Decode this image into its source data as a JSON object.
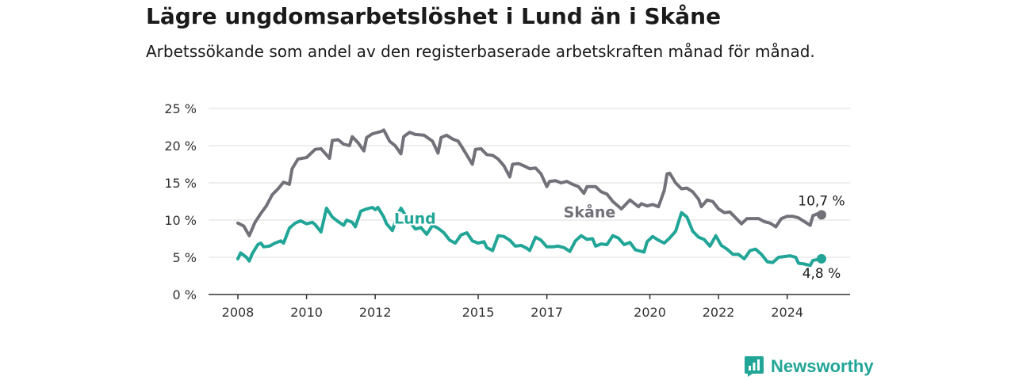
{
  "header": {
    "title": "Lägre ungdomsarbetslöshet i Lund än i Skåne",
    "subtitle": "Arbetssökande som andel av den registerbaserade arbetskraften månad för månad."
  },
  "brand": {
    "name": "Newsworthy",
    "icon": "newsworthy-logo-icon",
    "color": "#21a597"
  },
  "chart_data": {
    "type": "line",
    "title": "Lägre ungdomsarbetslöshet i Lund än i Skåne",
    "subtitle": "Arbetssökande som andel av den registerbaserade arbetskraften månad för månad.",
    "xlabel": "",
    "ylabel": "",
    "xlim": [
      2008,
      2025
    ],
    "ylim": [
      0,
      25
    ],
    "x_ticks": [
      2008,
      2010,
      2012,
      2015,
      2017,
      2020,
      2022,
      2024
    ],
    "x_tick_labels": [
      "2008",
      "2010",
      "2012",
      "2015",
      "2017",
      "2020",
      "2022",
      "2024"
    ],
    "y_ticks": [
      0,
      5,
      10,
      15,
      20,
      25
    ],
    "y_tick_labels": [
      "0 %",
      "5 %",
      "10 %",
      "15 %",
      "20 %",
      "25 %"
    ],
    "grid": true,
    "legend": "inline labels",
    "series": [
      {
        "name": "Skåne",
        "color": "#727179",
        "end_label": "10,7 %",
        "points": [
          [
            2008.0,
            9.6
          ],
          [
            2008.17,
            9.2
          ],
          [
            2008.33,
            7.9
          ],
          [
            2008.5,
            9.7
          ],
          [
            2008.67,
            10.9
          ],
          [
            2008.83,
            11.9
          ],
          [
            2009.0,
            13.4
          ],
          [
            2009.17,
            14.2
          ],
          [
            2009.33,
            15.1
          ],
          [
            2009.5,
            14.8
          ],
          [
            2009.58,
            16.9
          ],
          [
            2009.75,
            18.2
          ],
          [
            2010.0,
            18.4
          ],
          [
            2010.25,
            19.5
          ],
          [
            2010.42,
            19.6
          ],
          [
            2010.67,
            18.3
          ],
          [
            2010.75,
            20.7
          ],
          [
            2010.92,
            20.8
          ],
          [
            2011.08,
            20.2
          ],
          [
            2011.25,
            20.0
          ],
          [
            2011.33,
            21.2
          ],
          [
            2011.5,
            20.4
          ],
          [
            2011.67,
            19.3
          ],
          [
            2011.75,
            21.1
          ],
          [
            2011.92,
            21.6
          ],
          [
            2012.17,
            21.9
          ],
          [
            2012.25,
            22.1
          ],
          [
            2012.42,
            20.6
          ],
          [
            2012.58,
            20.0
          ],
          [
            2012.75,
            18.9
          ],
          [
            2012.83,
            21.2
          ],
          [
            2013.0,
            21.8
          ],
          [
            2013.17,
            21.5
          ],
          [
            2013.42,
            21.4
          ],
          [
            2013.67,
            20.6
          ],
          [
            2013.83,
            19.0
          ],
          [
            2013.92,
            21.1
          ],
          [
            2014.08,
            21.4
          ],
          [
            2014.25,
            20.9
          ],
          [
            2014.42,
            20.6
          ],
          [
            2014.58,
            19.4
          ],
          [
            2014.83,
            17.5
          ],
          [
            2014.92,
            19.5
          ],
          [
            2015.08,
            19.6
          ],
          [
            2015.25,
            18.8
          ],
          [
            2015.42,
            18.7
          ],
          [
            2015.58,
            18.2
          ],
          [
            2015.75,
            17.3
          ],
          [
            2015.92,
            15.8
          ],
          [
            2016.0,
            17.5
          ],
          [
            2016.17,
            17.6
          ],
          [
            2016.33,
            17.3
          ],
          [
            2016.5,
            16.9
          ],
          [
            2016.67,
            17.0
          ],
          [
            2016.83,
            16.2
          ],
          [
            2017.0,
            14.5
          ],
          [
            2017.08,
            15.2
          ],
          [
            2017.25,
            15.3
          ],
          [
            2017.42,
            15.0
          ],
          [
            2017.58,
            15.2
          ],
          [
            2017.75,
            14.8
          ],
          [
            2017.92,
            14.5
          ],
          [
            2018.08,
            13.6
          ],
          [
            2018.17,
            14.5
          ],
          [
            2018.42,
            14.5
          ],
          [
            2018.58,
            13.8
          ],
          [
            2018.75,
            13.5
          ],
          [
            2018.92,
            12.5
          ],
          [
            2019.17,
            11.5
          ],
          [
            2019.42,
            12.7
          ],
          [
            2019.67,
            11.8
          ],
          [
            2019.75,
            12.2
          ],
          [
            2019.92,
            11.9
          ],
          [
            2020.08,
            12.1
          ],
          [
            2020.25,
            11.8
          ],
          [
            2020.42,
            14.0
          ],
          [
            2020.5,
            16.2
          ],
          [
            2020.58,
            16.3
          ],
          [
            2020.75,
            15.0
          ],
          [
            2020.92,
            14.2
          ],
          [
            2021.08,
            14.3
          ],
          [
            2021.25,
            13.8
          ],
          [
            2021.42,
            12.8
          ],
          [
            2021.5,
            11.8
          ],
          [
            2021.67,
            12.7
          ],
          [
            2021.83,
            12.5
          ],
          [
            2022.0,
            11.5
          ],
          [
            2022.17,
            11.0
          ],
          [
            2022.33,
            11.1
          ],
          [
            2022.5,
            10.3
          ],
          [
            2022.67,
            9.5
          ],
          [
            2022.83,
            10.2
          ],
          [
            2023.0,
            10.2
          ],
          [
            2023.17,
            10.2
          ],
          [
            2023.33,
            9.8
          ],
          [
            2023.5,
            9.6
          ],
          [
            2023.67,
            9.1
          ],
          [
            2023.83,
            10.2
          ],
          [
            2024.0,
            10.5
          ],
          [
            2024.17,
            10.5
          ],
          [
            2024.33,
            10.3
          ],
          [
            2024.5,
            9.8
          ],
          [
            2024.67,
            9.3
          ],
          [
            2024.75,
            10.6
          ],
          [
            2024.92,
            10.9
          ],
          [
            2025.0,
            10.7
          ]
        ]
      },
      {
        "name": "Lund",
        "color": "#21a597",
        "end_label": "4,8 %",
        "points": [
          [
            2008.0,
            4.8
          ],
          [
            2008.08,
            5.6
          ],
          [
            2008.25,
            5.0
          ],
          [
            2008.33,
            4.5
          ],
          [
            2008.42,
            5.5
          ],
          [
            2008.58,
            6.7
          ],
          [
            2008.67,
            6.9
          ],
          [
            2008.75,
            6.4
          ],
          [
            2008.92,
            6.5
          ],
          [
            2009.08,
            6.9
          ],
          [
            2009.25,
            7.2
          ],
          [
            2009.33,
            6.9
          ],
          [
            2009.5,
            8.9
          ],
          [
            2009.67,
            9.6
          ],
          [
            2009.83,
            9.9
          ],
          [
            2010.0,
            9.5
          ],
          [
            2010.17,
            9.7
          ],
          [
            2010.25,
            9.4
          ],
          [
            2010.42,
            8.4
          ],
          [
            2010.58,
            11.6
          ],
          [
            2010.75,
            10.4
          ],
          [
            2010.92,
            9.8
          ],
          [
            2011.08,
            9.3
          ],
          [
            2011.17,
            10.0
          ],
          [
            2011.33,
            9.7
          ],
          [
            2011.42,
            9.1
          ],
          [
            2011.58,
            11.2
          ],
          [
            2011.75,
            11.5
          ],
          [
            2011.92,
            11.7
          ],
          [
            2012.0,
            11.4
          ],
          [
            2012.08,
            11.7
          ],
          [
            2012.25,
            10.4
          ],
          [
            2012.33,
            9.5
          ],
          [
            2012.5,
            8.6
          ],
          [
            2012.67,
            10.9
          ],
          [
            2012.75,
            11.6
          ],
          [
            2013.0,
            9.8
          ],
          [
            2013.17,
            8.8
          ],
          [
            2013.33,
            9.0
          ],
          [
            2013.5,
            8.1
          ],
          [
            2013.67,
            9.3
          ],
          [
            2013.83,
            8.9
          ],
          [
            2014.0,
            8.3
          ],
          [
            2014.17,
            7.3
          ],
          [
            2014.33,
            6.9
          ],
          [
            2014.5,
            8.0
          ],
          [
            2014.67,
            8.3
          ],
          [
            2014.83,
            7.2
          ],
          [
            2015.0,
            6.9
          ],
          [
            2015.17,
            7.1
          ],
          [
            2015.25,
            6.3
          ],
          [
            2015.42,
            5.9
          ],
          [
            2015.58,
            7.9
          ],
          [
            2015.75,
            7.8
          ],
          [
            2015.92,
            7.3
          ],
          [
            2016.08,
            6.5
          ],
          [
            2016.25,
            6.6
          ],
          [
            2016.42,
            6.2
          ],
          [
            2016.5,
            5.9
          ],
          [
            2016.67,
            7.7
          ],
          [
            2016.83,
            7.3
          ],
          [
            2017.0,
            6.4
          ],
          [
            2017.17,
            6.4
          ],
          [
            2017.33,
            6.5
          ],
          [
            2017.5,
            6.3
          ],
          [
            2017.67,
            5.8
          ],
          [
            2017.83,
            7.2
          ],
          [
            2018.0,
            7.9
          ],
          [
            2018.17,
            7.4
          ],
          [
            2018.33,
            7.5
          ],
          [
            2018.42,
            6.5
          ],
          [
            2018.58,
            6.8
          ],
          [
            2018.75,
            6.7
          ],
          [
            2018.92,
            7.9
          ],
          [
            2019.08,
            7.6
          ],
          [
            2019.25,
            6.7
          ],
          [
            2019.42,
            7.0
          ],
          [
            2019.58,
            6.0
          ],
          [
            2019.83,
            5.7
          ],
          [
            2019.92,
            7.1
          ],
          [
            2020.08,
            7.8
          ],
          [
            2020.25,
            7.3
          ],
          [
            2020.42,
            6.9
          ],
          [
            2020.58,
            7.6
          ],
          [
            2020.75,
            8.5
          ],
          [
            2020.92,
            11.0
          ],
          [
            2021.08,
            10.4
          ],
          [
            2021.25,
            8.5
          ],
          [
            2021.42,
            7.7
          ],
          [
            2021.58,
            7.4
          ],
          [
            2021.75,
            6.5
          ],
          [
            2021.92,
            7.9
          ],
          [
            2022.08,
            6.6
          ],
          [
            2022.25,
            6.1
          ],
          [
            2022.42,
            5.4
          ],
          [
            2022.58,
            5.4
          ],
          [
            2022.75,
            4.8
          ],
          [
            2022.92,
            5.9
          ],
          [
            2023.08,
            6.1
          ],
          [
            2023.25,
            5.4
          ],
          [
            2023.42,
            4.4
          ],
          [
            2023.58,
            4.3
          ],
          [
            2023.75,
            5.0
          ],
          [
            2023.92,
            5.1
          ],
          [
            2024.08,
            5.2
          ],
          [
            2024.25,
            5.0
          ],
          [
            2024.33,
            4.2
          ],
          [
            2024.5,
            4.1
          ],
          [
            2024.67,
            3.9
          ],
          [
            2024.75,
            4.6
          ],
          [
            2024.92,
            4.7
          ],
          [
            2025.0,
            4.8
          ]
        ]
      }
    ]
  }
}
